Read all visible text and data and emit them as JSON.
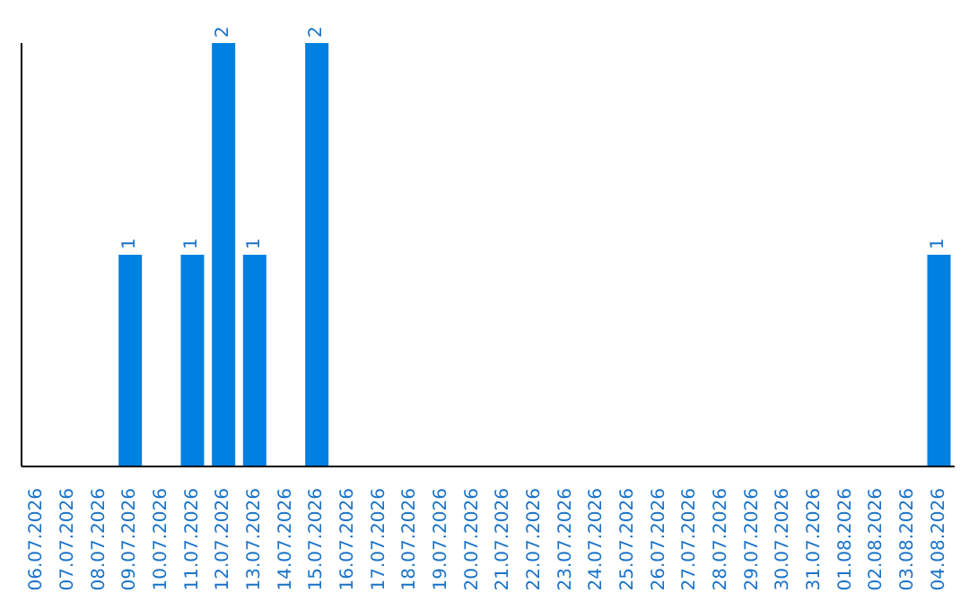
{
  "chart_data": {
    "type": "bar",
    "categories": [
      "06.07.2026",
      "07.07.2026",
      "08.07.2026",
      "09.07.2026",
      "10.07.2026",
      "11.07.2026",
      "12.07.2026",
      "13.07.2026",
      "14.07.2026",
      "15.07.2026",
      "16.07.2026",
      "17.07.2026",
      "18.07.2026",
      "19.07.2026",
      "20.07.2026",
      "21.07.2026",
      "22.07.2026",
      "23.07.2026",
      "24.07.2026",
      "25.07.2026",
      "26.07.2026",
      "27.07.2026",
      "28.07.2026",
      "29.07.2026",
      "30.07.2026",
      "31.07.2026",
      "01.08.2026",
      "02.08.2026",
      "03.08.2026",
      "04.08.2026"
    ],
    "values": [
      0,
      0,
      0,
      1,
      0,
      1,
      2,
      1,
      0,
      2,
      0,
      0,
      0,
      0,
      0,
      0,
      0,
      0,
      0,
      0,
      0,
      0,
      0,
      0,
      0,
      0,
      0,
      0,
      0,
      1
    ],
    "value_labels": [
      null,
      null,
      null,
      "1",
      null,
      "1",
      "2",
      "1",
      null,
      "2",
      null,
      null,
      null,
      null,
      null,
      null,
      null,
      null,
      null,
      null,
      null,
      null,
      null,
      null,
      null,
      null,
      null,
      null,
      null,
      "1"
    ],
    "color": "#0080e0"
  }
}
